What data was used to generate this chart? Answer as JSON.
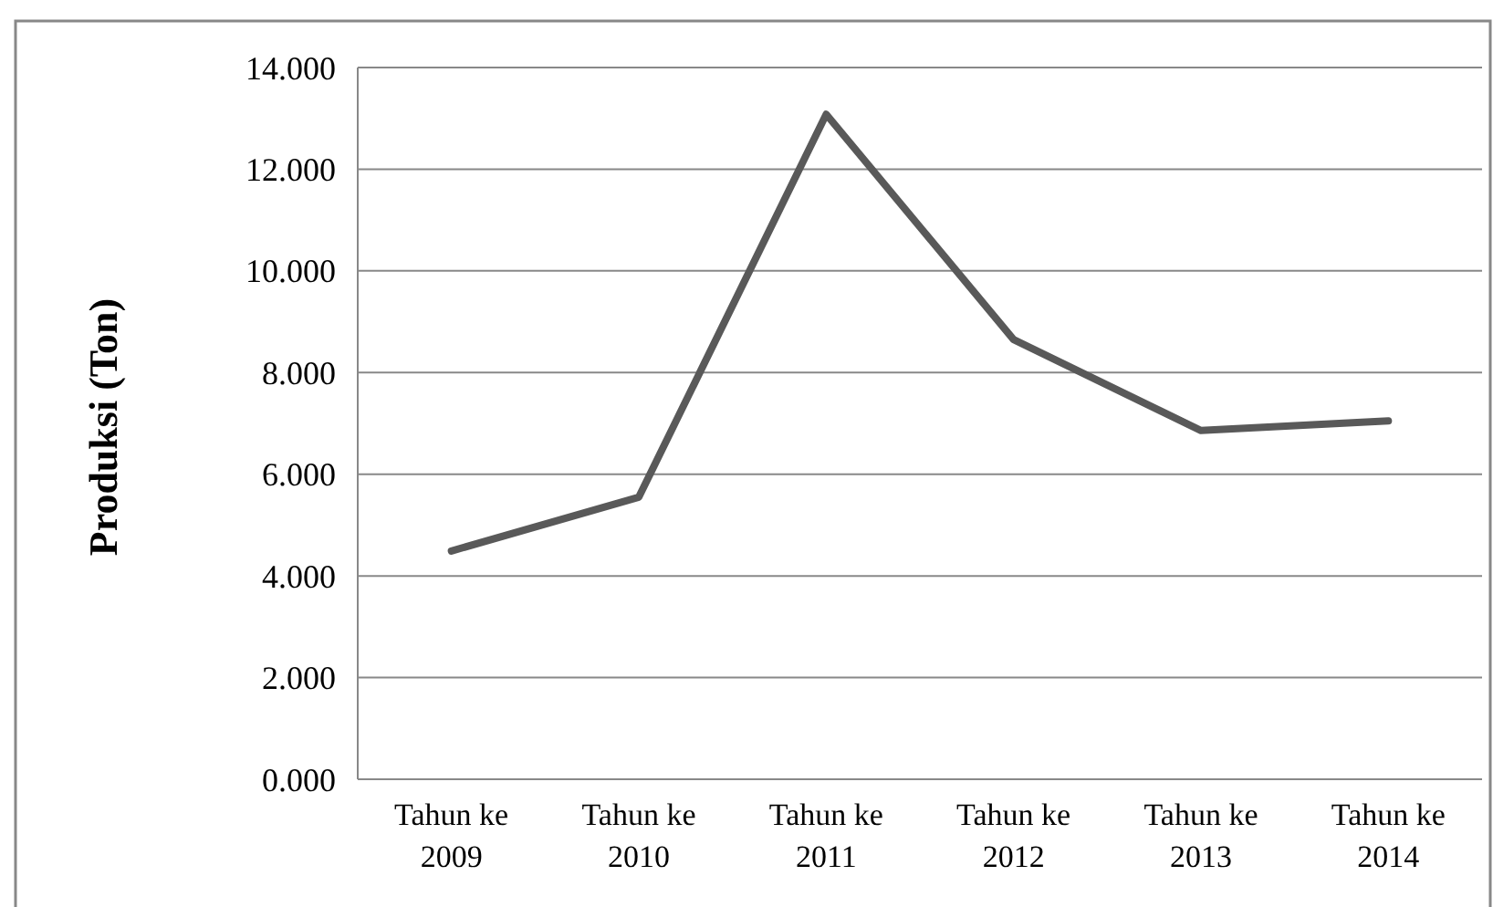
{
  "chart_data": {
    "type": "line",
    "ylabel": "Produksi (Ton)",
    "categories": [
      "Tahun ke 2009",
      "Tahun ke 2010",
      "Tahun ke 2011",
      "Tahun ke 2012",
      "Tahun ke 2013",
      "Tahun ke 2014"
    ],
    "series": [
      {
        "color": "#595959",
        "values": [
          4.49,
          5.55,
          13.08,
          8.65,
          6.86,
          7.05
        ]
      }
    ],
    "ylim": [
      0,
      14
    ],
    "yticks": [
      {
        "value": 0,
        "label": "0.000"
      },
      {
        "value": 2,
        "label": "2.000"
      },
      {
        "value": 4,
        "label": "4.000"
      },
      {
        "value": 6,
        "label": "6.000"
      },
      {
        "value": 8,
        "label": "8.000"
      },
      {
        "value": 10,
        "label": "10.000"
      },
      {
        "value": 12,
        "label": "12.000"
      },
      {
        "value": 14,
        "label": "14.000"
      }
    ],
    "grid": "y",
    "marker": "none",
    "line_style": "solid"
  }
}
